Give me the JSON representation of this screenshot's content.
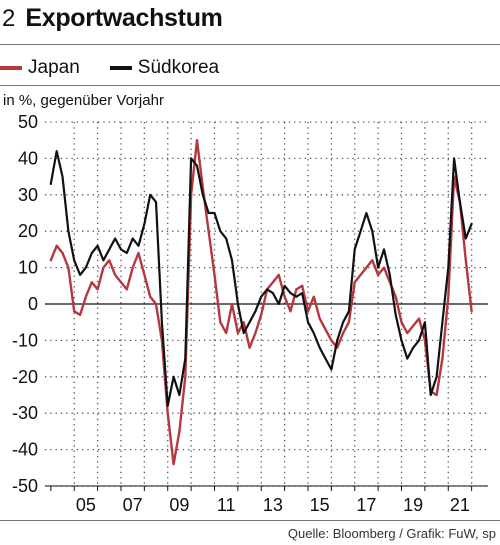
{
  "header": {
    "number": "2",
    "title": "Exportwachstum"
  },
  "legend": [
    {
      "label": "Japan",
      "color": "#b5383e"
    },
    {
      "label": "Südkorea",
      "color": "#111111"
    }
  ],
  "source": "Quelle: Bloomberg / Grafik: FuW, sp",
  "chart_data": {
    "type": "line",
    "title": "Exportwachstum",
    "subtitle": "in %, gegenüber Vorjahr",
    "xlabel": "",
    "ylabel": "in %, gegenüber Vorjahr",
    "x_ticks": [
      "05",
      "07",
      "09",
      "11",
      "13",
      "15",
      "17",
      "19",
      "21"
    ],
    "y_ticks": [
      50,
      40,
      30,
      20,
      10,
      0,
      -10,
      -20,
      -30,
      -40,
      -50
    ],
    "xlim": [
      2003.75,
      2022.7
    ],
    "ylim": [
      -50,
      50
    ],
    "grid": "dotted",
    "legend_position": "top-left",
    "series": [
      {
        "name": "Japan",
        "color": "#b5383e",
        "x": [
          2004.0,
          2004.25,
          2004.5,
          2004.75,
          2005.0,
          2005.25,
          2005.5,
          2005.75,
          2006.0,
          2006.25,
          2006.5,
          2006.75,
          2007.0,
          2007.25,
          2007.5,
          2007.75,
          2008.0,
          2008.25,
          2008.5,
          2008.75,
          2009.0,
          2009.25,
          2009.5,
          2009.75,
          2010.0,
          2010.25,
          2010.5,
          2010.75,
          2011.0,
          2011.25,
          2011.5,
          2011.75,
          2012.0,
          2012.25,
          2012.5,
          2012.75,
          2013.0,
          2013.25,
          2013.5,
          2013.75,
          2014.0,
          2014.25,
          2014.5,
          2014.75,
          2015.0,
          2015.25,
          2015.5,
          2015.75,
          2016.0,
          2016.25,
          2016.5,
          2016.75,
          2017.0,
          2017.25,
          2017.5,
          2017.75,
          2018.0,
          2018.25,
          2018.5,
          2018.75,
          2019.0,
          2019.25,
          2019.5,
          2019.75,
          2020.0,
          2020.25,
          2020.5,
          2020.75,
          2021.0,
          2021.25,
          2021.5,
          2021.75,
          2022.0
        ],
        "values": [
          12,
          16,
          14,
          10,
          -2,
          -3,
          2,
          6,
          4,
          10,
          12,
          8,
          6,
          4,
          10,
          14,
          8,
          2,
          0,
          -10,
          -30,
          -44,
          -35,
          -20,
          30,
          45,
          32,
          20,
          8,
          -5,
          -8,
          0,
          -8,
          -5,
          -12,
          -8,
          -3,
          4,
          6,
          8,
          2,
          -2,
          4,
          5,
          -2,
          2,
          -4,
          -7,
          -10,
          -12,
          -8,
          -5,
          6,
          8,
          10,
          12,
          8,
          10,
          6,
          2,
          -5,
          -8,
          -6,
          -4,
          -10,
          -24,
          -25,
          -15,
          2,
          35,
          28,
          12,
          -2
        ]
      },
      {
        "name": "Südkorea",
        "color": "#111111",
        "x": [
          2004.0,
          2004.25,
          2004.5,
          2004.75,
          2005.0,
          2005.25,
          2005.5,
          2005.75,
          2006.0,
          2006.25,
          2006.5,
          2006.75,
          2007.0,
          2007.25,
          2007.5,
          2007.75,
          2008.0,
          2008.25,
          2008.5,
          2008.75,
          2009.0,
          2009.25,
          2009.5,
          2009.75,
          2010.0,
          2010.25,
          2010.5,
          2010.75,
          2011.0,
          2011.25,
          2011.5,
          2011.75,
          2012.0,
          2012.25,
          2012.5,
          2012.75,
          2013.0,
          2013.25,
          2013.5,
          2013.75,
          2014.0,
          2014.25,
          2014.5,
          2014.75,
          2015.0,
          2015.25,
          2015.5,
          2015.75,
          2016.0,
          2016.25,
          2016.5,
          2016.75,
          2017.0,
          2017.25,
          2017.5,
          2017.75,
          2018.0,
          2018.25,
          2018.5,
          2018.75,
          2019.0,
          2019.25,
          2019.5,
          2019.75,
          2020.0,
          2020.25,
          2020.5,
          2020.75,
          2021.0,
          2021.25,
          2021.5,
          2021.75,
          2022.0
        ],
        "values": [
          33,
          42,
          35,
          20,
          12,
          8,
          10,
          14,
          16,
          12,
          15,
          18,
          15,
          14,
          18,
          16,
          22,
          30,
          28,
          -5,
          -28,
          -20,
          -25,
          -15,
          40,
          38,
          30,
          25,
          25,
          20,
          18,
          12,
          0,
          -8,
          -5,
          -2,
          2,
          4,
          3,
          0,
          5,
          3,
          2,
          3,
          -5,
          -8,
          -12,
          -15,
          -18,
          -10,
          -5,
          -2,
          15,
          20,
          25,
          20,
          10,
          15,
          8,
          -3,
          -10,
          -15,
          -12,
          -10,
          -5,
          -25,
          -20,
          -5,
          10,
          40,
          28,
          18,
          22
        ]
      }
    ]
  }
}
